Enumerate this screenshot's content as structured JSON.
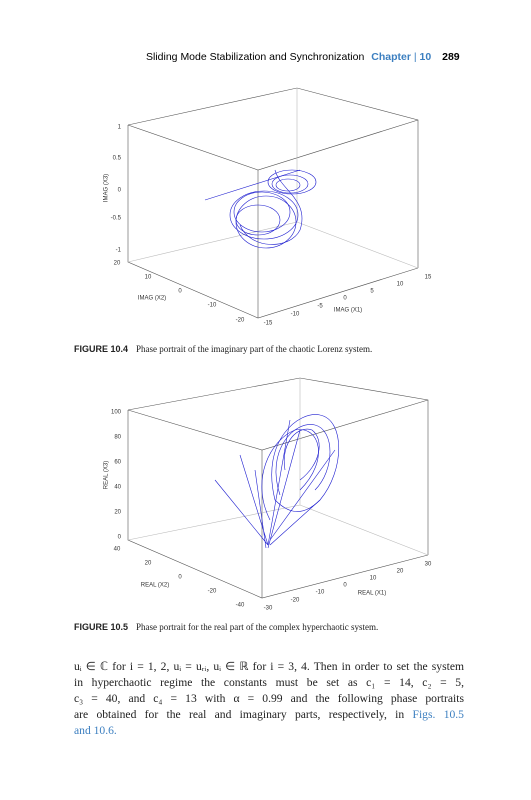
{
  "header": {
    "title": "Sliding Mode Stabilization and Synchronization",
    "chapter": "Chapter",
    "separator": "|",
    "chapter_number": "10",
    "page": "289"
  },
  "figures": [
    {
      "z_label": "IMAG (X3)",
      "x2_label": "IMAG (X2)",
      "x1_label": "IMAG (X1)",
      "z_ticks": [
        "1",
        "0.5",
        "0",
        "-0.5",
        "-1"
      ],
      "x2_ticks": [
        "20",
        "10",
        "0",
        "-10",
        "-20"
      ],
      "x1_ticks": [
        "-15",
        "-10",
        "-5",
        "0",
        "5",
        "10",
        "15"
      ],
      "caption_label": "FIGURE 10.4",
      "caption": "Phase portrait of the imaginary part of the chaotic Lorenz system."
    },
    {
      "z_label": "REAL (X3)",
      "x2_label": "REAL (X2)",
      "x1_label": "REAL (X1)",
      "z_ticks": [
        "100",
        "80",
        "60",
        "40",
        "20",
        "0"
      ],
      "x2_ticks": [
        "40",
        "20",
        "0",
        "-20",
        "-40"
      ],
      "x1_ticks": [
        "-30",
        "-20",
        "-10",
        "0",
        "10",
        "20",
        "30"
      ],
      "caption_label": "FIGURE 10.5",
      "caption": "Phase portrait for the real part of the complex hyperchaotic system."
    }
  ],
  "body": {
    "lines": [
      "uᵢ ∈ ℂ for i = 1, 2, uᵢ = uᵣᵢ, uᵢ ∈ ℝ for i = 3, 4. Then in order to set the system",
      "in hyperchaotic regime the constants must be set as c₁ = 14, c₂ = 5,",
      "c₃ = 40, and c₄ = 13 with α = 0.99 and the following phase portraits",
      "are obtained for the real and imaginary parts, respectively, in"
    ],
    "link_1": "Figs. 10.5",
    "link_2": "and 10.6."
  }
}
